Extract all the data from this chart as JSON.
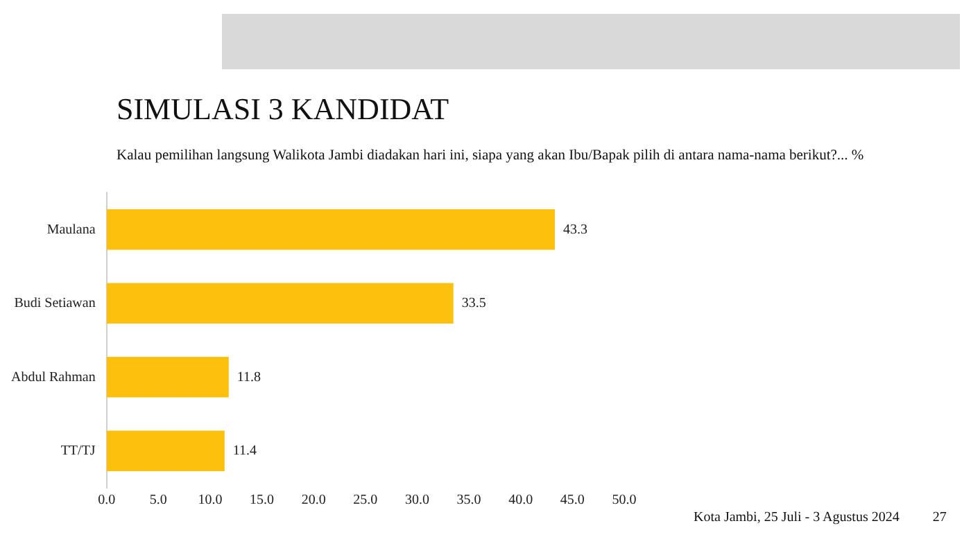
{
  "chart_data": {
    "type": "bar",
    "orientation": "horizontal",
    "title": "SIMULASI 3 KANDIDAT",
    "subtitle": "Kalau pemilihan langsung Walikota Jambi diadakan hari ini, siapa yang akan Ibu/Bapak pilih di antara nama-nama berikut?... %",
    "categories": [
      "Maulana",
      "Budi Setiawan",
      "Abdul Rahman",
      "TT/TJ"
    ],
    "values": [
      43.3,
      33.5,
      11.8,
      11.4
    ],
    "color": "#fcc00d",
    "xlim": [
      0,
      50
    ],
    "xticks": [
      {
        "value": 0,
        "label": "0.0"
      },
      {
        "value": 5,
        "label": "5.0"
      },
      {
        "value": 10,
        "label": "10.0"
      },
      {
        "value": 15,
        "label": "15.0"
      },
      {
        "value": 20,
        "label": "20.0"
      },
      {
        "value": 25,
        "label": "25.0"
      },
      {
        "value": 30,
        "label": "30.0"
      },
      {
        "value": 35,
        "label": "35.0"
      },
      {
        "value": 40,
        "label": "40.0"
      },
      {
        "value": 45,
        "label": "45.0"
      },
      {
        "value": 50,
        "label": "50.0"
      }
    ],
    "data_labels": true,
    "grid": false,
    "legend": false,
    "annotations": [
      "Kota Jambi, 25 Juli - 3 Agustus 2024",
      "27"
    ]
  }
}
